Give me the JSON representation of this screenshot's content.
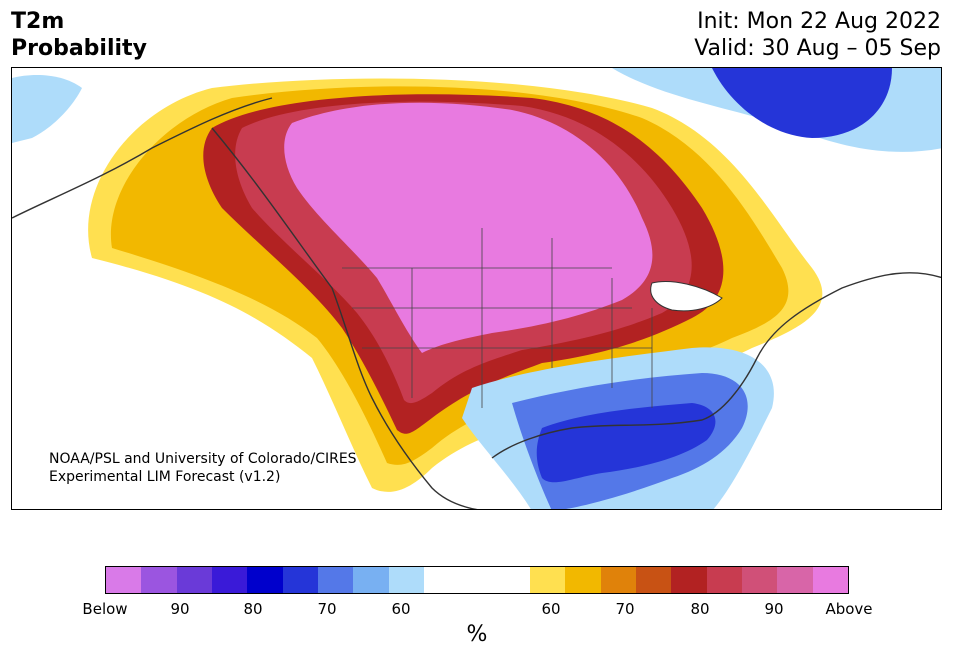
{
  "title": {
    "line1": "T2m",
    "line2": "Probability"
  },
  "dates": {
    "init": "Init: Mon 22 Aug 2022",
    "valid": "Valid: 30 Aug – 05 Sep"
  },
  "credit": {
    "line1": "NOAA/PSL and University of Colorado/CIRES",
    "line2": "Experimental LIM Forecast (v1.2)"
  },
  "colorbar": {
    "unit": "%",
    "colors": [
      "#d97ae8",
      "#9b55e0",
      "#6a3ad8",
      "#3a1ad8",
      "#0000cc",
      "#2535d8",
      "#5478e8",
      "#78b0f2",
      "#aedcfa",
      "#ffffff",
      "#ffe050",
      "#f2b800",
      "#e0820a",
      "#c85214",
      "#b22222",
      "#c83c50",
      "#d05078",
      "#d865a8",
      "#e87ae0"
    ],
    "tick_labels": [
      "Below",
      "90",
      "80",
      "70",
      "60",
      "60",
      "70",
      "80",
      "90",
      "Above"
    ]
  },
  "legend": {
    "colors": {
      "above_high": "#e87ae0",
      "above_mid": "#c83c50",
      "above_low": "#f2b800",
      "below_low": "#aedcfa",
      "below_mid": "#5478e8",
      "below_high": "#2535d8"
    }
  }
}
